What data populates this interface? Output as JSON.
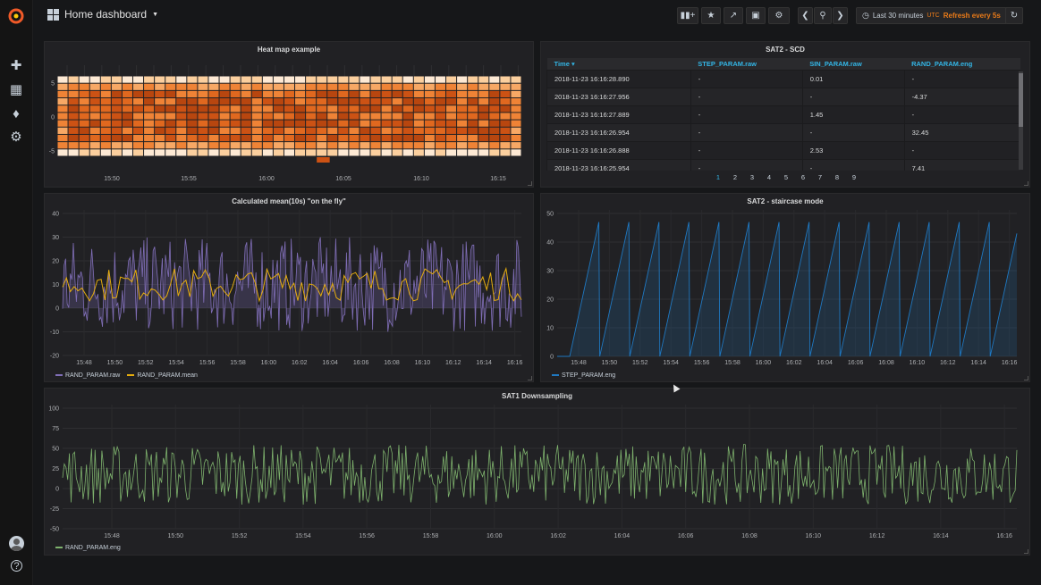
{
  "navbar": {
    "dashboard_title": "Home dashboard",
    "time_range": "Last 30 minutes",
    "timezone": "UTC",
    "refresh": "Refresh every 5s"
  },
  "sidebar": {
    "icons": [
      "grafana-logo-icon",
      "plus-icon",
      "dashboards-icon",
      "bell-icon",
      "gear-icon",
      "avatar",
      "help-icon"
    ]
  },
  "panels": {
    "heatmap": {
      "title": "Heat map example",
      "y_ticks": [
        "5",
        "0",
        "-5"
      ],
      "x_ticks": [
        "15:50",
        "15:55",
        "16:00",
        "16:05",
        "16:10",
        "16:15"
      ]
    },
    "scd": {
      "title": "SAT2 - SCD",
      "columns": [
        "Time",
        "STEP_PARAM.raw",
        "SIN_PARAM.raw",
        "RAND_PARAM.eng"
      ],
      "rows": [
        [
          "2018-11-23 16:16:28.890",
          "-",
          "0.01",
          "-"
        ],
        [
          "2018-11-23 16:16:27.956",
          "-",
          "-",
          "-4.37"
        ],
        [
          "2018-11-23 16:16:27.889",
          "-",
          "1.45",
          "-"
        ],
        [
          "2018-11-23 16:16:26.954",
          "-",
          "-",
          "32.45"
        ],
        [
          "2018-11-23 16:16:26.888",
          "-",
          "2.53",
          "-"
        ],
        [
          "2018-11-23 16:16:25.954",
          "-",
          "-",
          "7.41"
        ]
      ],
      "pages": [
        "1",
        "2",
        "3",
        "4",
        "5",
        "6",
        "7",
        "8",
        "9"
      ]
    },
    "mean": {
      "title": "Calculated mean(10s) \"on the fly\"",
      "y_ticks": [
        "40",
        "30",
        "20",
        "10",
        "0",
        "-10",
        "-20"
      ],
      "x_ticks": [
        "15:48",
        "15:50",
        "15:52",
        "15:54",
        "15:56",
        "15:58",
        "16:00",
        "16:02",
        "16:04",
        "16:06",
        "16:08",
        "16:10",
        "16:12",
        "16:14",
        "16:16"
      ],
      "legend": [
        "RAND_PARAM.raw",
        "RAND_PARAM.mean"
      ],
      "colors": {
        "raw": "#806eb7",
        "mean": "#e5ac0e"
      }
    },
    "staircase": {
      "title": "SAT2 - staircase mode",
      "y_ticks": [
        "50",
        "40",
        "30",
        "20",
        "10",
        "0"
      ],
      "x_ticks": [
        "15:48",
        "15:50",
        "15:52",
        "15:54",
        "15:56",
        "15:58",
        "16:00",
        "16:02",
        "16:04",
        "16:06",
        "16:08",
        "16:10",
        "16:12",
        "16:14",
        "16:16"
      ],
      "legend": [
        "STEP_PARAM.eng"
      ],
      "colors": {
        "line": "#1f78c1"
      }
    },
    "downsampling": {
      "title": "SAT1 Downsampling",
      "y_ticks": [
        "100",
        "75",
        "50",
        "25",
        "0",
        "-25",
        "-50"
      ],
      "x_ticks": [
        "15:48",
        "15:50",
        "15:52",
        "15:54",
        "15:56",
        "15:58",
        "16:00",
        "16:02",
        "16:04",
        "16:06",
        "16:08",
        "16:10",
        "16:12",
        "16:14",
        "16:16"
      ],
      "legend": [
        "RAND_PARAM.eng"
      ],
      "colors": {
        "line": "#7eb26d"
      }
    }
  }
}
